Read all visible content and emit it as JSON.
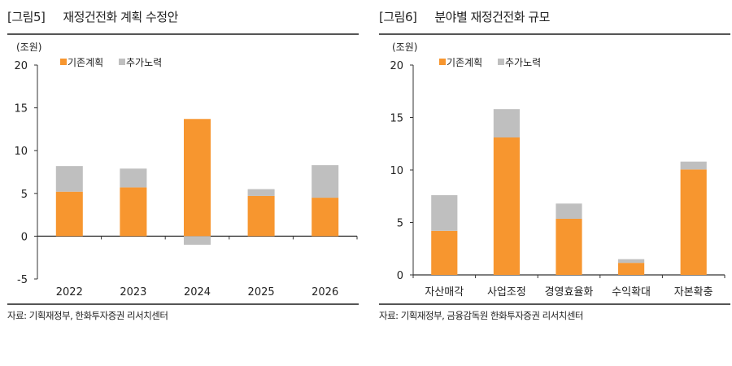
{
  "colors": {
    "base": "#f7962f",
    "extra": "#bfbfbf",
    "axis": "#333333"
  },
  "chart_data": [
    {
      "type": "bar",
      "stacked": true,
      "figure_label": "[그림5]",
      "title": "재정건전화 계획 수정안",
      "unit": "(조원)",
      "categories": [
        "2022",
        "2023",
        "2024",
        "2025",
        "2026"
      ],
      "series": [
        {
          "name": "기존계획",
          "values": [
            5.2,
            5.7,
            13.7,
            4.7,
            4.5
          ]
        },
        {
          "name": "추가노력",
          "values": [
            3.0,
            2.2,
            -1.0,
            0.8,
            3.8
          ]
        }
      ],
      "ylim": [
        -5,
        20
      ],
      "yticks": [
        "-5",
        "0",
        "5",
        "10",
        "15",
        "20"
      ],
      "legend": "top-left",
      "grid": false,
      "source": "자료: 기획재정부, 한화투자증권 리서치센터"
    },
    {
      "type": "bar",
      "stacked": true,
      "figure_label": "[그림6]",
      "title": "분야별 재정건전화 규모",
      "unit": "(조원)",
      "categories": [
        "자산매각",
        "사업조정",
        "경영효율화",
        "수익확대",
        "자본확충"
      ],
      "series": [
        {
          "name": "기존계획",
          "values": [
            4.2,
            13.1,
            5.35,
            1.15,
            10.05
          ]
        },
        {
          "name": "추가노력",
          "values": [
            3.4,
            2.7,
            1.45,
            0.35,
            0.75
          ]
        }
      ],
      "ylim": [
        0,
        20
      ],
      "yticks": [
        "0",
        "5",
        "10",
        "15",
        "20"
      ],
      "legend": "top-left",
      "grid": false,
      "source": "자료: 기획재정부, 금융감독원 한화투자증권 리서치센터"
    }
  ]
}
